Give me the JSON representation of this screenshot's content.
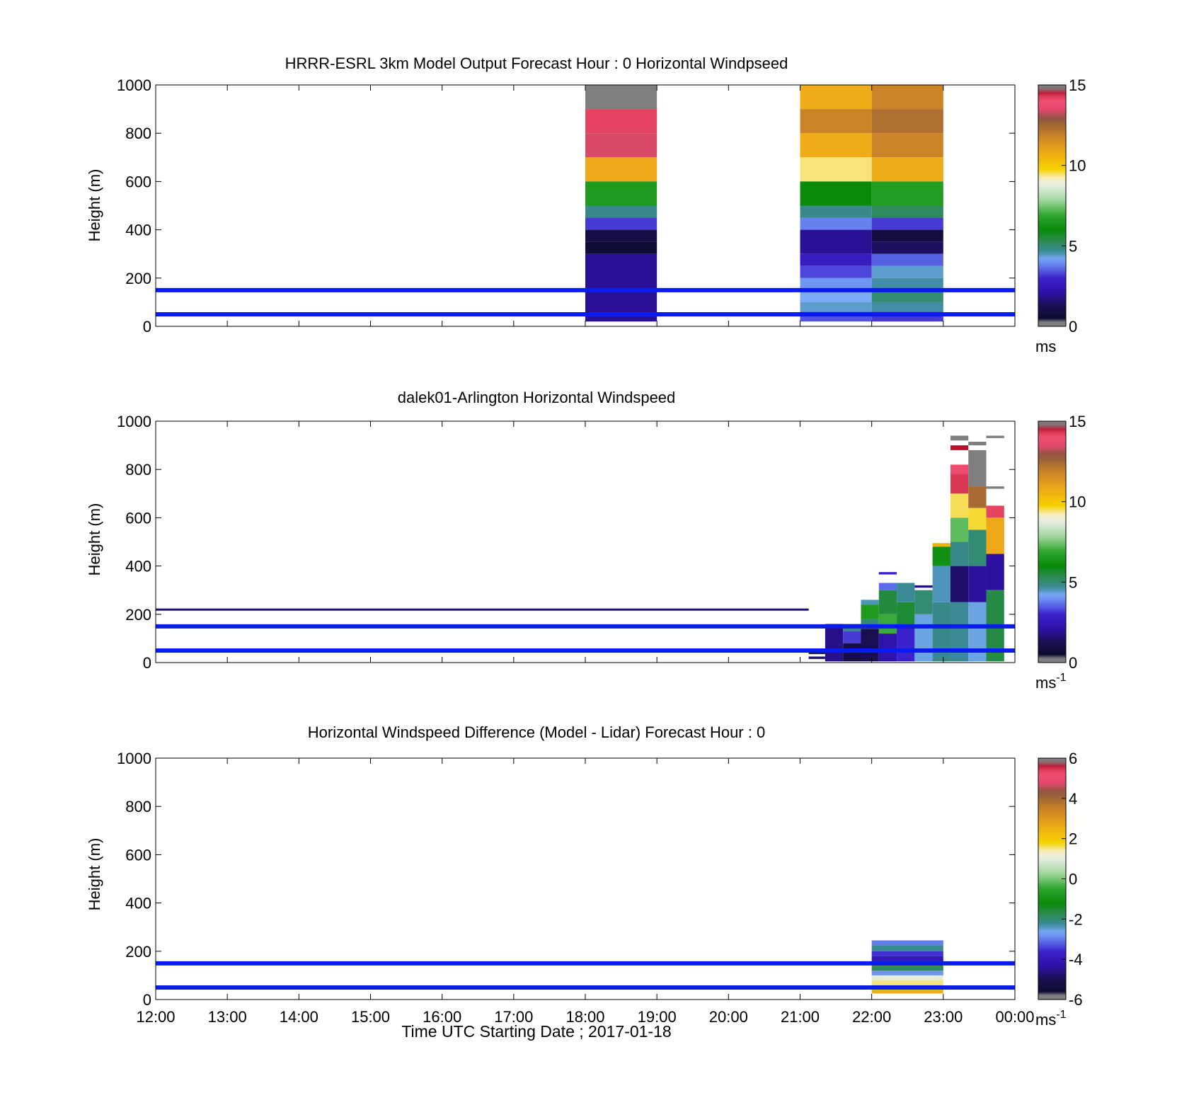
{
  "figure": {
    "xlabel": "Time UTC  Starting Date ; 2017-01-18",
    "x_tick_labels": [
      "12:00",
      "13:00",
      "14:00",
      "15:00",
      "16:00",
      "17:00",
      "18:00",
      "19:00",
      "20:00",
      "21:00",
      "22:00",
      "23:00",
      "00:00"
    ]
  },
  "chart_data": [
    {
      "type": "heatmap",
      "title": "HRRR-ESRL 3km Model Output   Forecast Hour : 0 Horizontal Windpseed",
      "ylabel": "Height (m)",
      "xlim": [
        12,
        24
      ],
      "ylim": [
        0,
        1000
      ],
      "y_ticks": [
        0,
        200,
        400,
        600,
        800,
        1000
      ],
      "y_tick_labels": [
        "0",
        "200",
        "400",
        "600",
        "800",
        "1000"
      ],
      "colorbar": {
        "min": 0,
        "max": 15,
        "ticks": [
          0,
          5,
          10,
          15
        ],
        "tick_labels": [
          "0",
          "5",
          "10",
          "15"
        ],
        "unit": "ms",
        "unit_exp": ""
      },
      "reference_lines_m": [
        50,
        150
      ],
      "reference_line_color": "#0a1bf0",
      "cells": [
        {
          "t0": 18,
          "t1": 19,
          "h0": 900,
          "h1": 1000,
          "v": 15.2
        },
        {
          "t0": 18,
          "t1": 19,
          "h0": 800,
          "h1": 900,
          "v": 14.2
        },
        {
          "t0": 18,
          "t1": 19,
          "h0": 700,
          "h1": 800,
          "v": 13.4
        },
        {
          "t0": 18,
          "t1": 19,
          "h0": 600,
          "h1": 700,
          "v": 10.8
        },
        {
          "t0": 18,
          "t1": 19,
          "h0": 500,
          "h1": 600,
          "v": 6.5
        },
        {
          "t0": 18,
          "t1": 19,
          "h0": 450,
          "h1": 500,
          "v": 4.8
        },
        {
          "t0": 18,
          "t1": 19,
          "h0": 400,
          "h1": 450,
          "v": 3.2
        },
        {
          "t0": 18,
          "t1": 19,
          "h0": 350,
          "h1": 400,
          "v": 1.0
        },
        {
          "t0": 18,
          "t1": 19,
          "h0": 300,
          "h1": 350,
          "v": 0.6
        },
        {
          "t0": 18,
          "t1": 19,
          "h0": 20,
          "h1": 300,
          "v": 1.9
        },
        {
          "t0": 21,
          "t1": 22,
          "h0": 900,
          "h1": 1000,
          "v": 10.7
        },
        {
          "t0": 21,
          "t1": 22,
          "h0": 800,
          "h1": 900,
          "v": 11.8
        },
        {
          "t0": 21,
          "t1": 22,
          "h0": 700,
          "h1": 800,
          "v": 10.7
        },
        {
          "t0": 21,
          "t1": 22,
          "h0": 600,
          "h1": 700,
          "v": 9.4
        },
        {
          "t0": 21,
          "t1": 22,
          "h0": 500,
          "h1": 600,
          "v": 6.0
        },
        {
          "t0": 21,
          "t1": 22,
          "h0": 450,
          "h1": 500,
          "v": 4.8
        },
        {
          "t0": 21,
          "t1": 22,
          "h0": 400,
          "h1": 450,
          "v": 3.8
        },
        {
          "t0": 21,
          "t1": 22,
          "h0": 300,
          "h1": 400,
          "v": 1.9
        },
        {
          "t0": 21,
          "t1": 22,
          "h0": 250,
          "h1": 300,
          "v": 2.7
        },
        {
          "t0": 21,
          "t1": 22,
          "h0": 200,
          "h1": 250,
          "v": 3.3
        },
        {
          "t0": 21,
          "t1": 22,
          "h0": 150,
          "h1": 200,
          "v": 4.0
        },
        {
          "t0": 21,
          "t1": 22,
          "h0": 100,
          "h1": 150,
          "v": 4.2
        },
        {
          "t0": 21,
          "t1": 22,
          "h0": 60,
          "h1": 100,
          "v": 4.4
        },
        {
          "t0": 21,
          "t1": 22,
          "h0": 20,
          "h1": 60,
          "v": 3.4
        },
        {
          "t0": 22,
          "t1": 23,
          "h0": 900,
          "h1": 1000,
          "v": 11.8
        },
        {
          "t0": 22,
          "t1": 23,
          "h0": 800,
          "h1": 900,
          "v": 12.3
        },
        {
          "t0": 22,
          "t1": 23,
          "h0": 700,
          "h1": 800,
          "v": 11.8
        },
        {
          "t0": 22,
          "t1": 23,
          "h0": 600,
          "h1": 700,
          "v": 10.7
        },
        {
          "t0": 22,
          "t1": 23,
          "h0": 500,
          "h1": 600,
          "v": 6.6
        },
        {
          "t0": 22,
          "t1": 23,
          "h0": 450,
          "h1": 500,
          "v": 5.2
        },
        {
          "t0": 22,
          "t1": 23,
          "h0": 400,
          "h1": 450,
          "v": 3.2
        },
        {
          "t0": 22,
          "t1": 23,
          "h0": 350,
          "h1": 400,
          "v": 0.9
        },
        {
          "t0": 22,
          "t1": 23,
          "h0": 300,
          "h1": 350,
          "v": 1.4
        },
        {
          "t0": 22,
          "t1": 23,
          "h0": 250,
          "h1": 300,
          "v": 3.5
        },
        {
          "t0": 22,
          "t1": 23,
          "h0": 200,
          "h1": 250,
          "v": 4.4
        },
        {
          "t0": 22,
          "t1": 23,
          "h0": 150,
          "h1": 200,
          "v": 4.6
        },
        {
          "t0": 22,
          "t1": 23,
          "h0": 100,
          "h1": 150,
          "v": 5.0
        },
        {
          "t0": 22,
          "t1": 23,
          "h0": 60,
          "h1": 100,
          "v": 4.6
        },
        {
          "t0": 22,
          "t1": 23,
          "h0": 20,
          "h1": 60,
          "v": 3.2
        }
      ]
    },
    {
      "type": "heatmap",
      "title": "dalek01-Arlington  Horizontal Windspeed",
      "ylabel": "Height (m)",
      "xlim": [
        12,
        24
      ],
      "ylim": [
        0,
        1000
      ],
      "y_ticks": [
        0,
        200,
        400,
        600,
        800,
        1000
      ],
      "y_tick_labels": [
        "0",
        "200",
        "400",
        "600",
        "800",
        "1000"
      ],
      "colorbar": {
        "min": 0,
        "max": 15,
        "ticks": [
          0,
          5,
          10,
          15
        ],
        "tick_labels": [
          "0",
          "5",
          "10",
          "15"
        ],
        "unit": "ms",
        "unit_exp": "-1"
      },
      "reference_lines_m": [
        50,
        150
      ],
      "reference_line_color": "#0a1bf0",
      "cells": [
        {
          "t0": 12,
          "t1": 21.12,
          "h0": 215,
          "h1": 224,
          "v": 1.6
        },
        {
          "t0": 21.12,
          "t1": 21.35,
          "h0": 15,
          "h1": 25,
          "v": 1.5
        },
        {
          "t0": 21.12,
          "t1": 21.35,
          "h0": 35,
          "h1": 42,
          "v": 1.5
        },
        {
          "t0": 21.35,
          "t1": 21.6,
          "h0": 5,
          "h1": 160,
          "v": 1.8
        },
        {
          "t0": 21.6,
          "t1": 21.85,
          "h0": 130,
          "h1": 160,
          "v": 4.8
        },
        {
          "t0": 21.6,
          "t1": 21.85,
          "h0": 80,
          "h1": 130,
          "v": 3.2
        },
        {
          "t0": 21.6,
          "t1": 21.85,
          "h0": 5,
          "h1": 80,
          "v": 1.0
        },
        {
          "t0": 21.85,
          "t1": 22.1,
          "h0": 240,
          "h1": 260,
          "v": 4.5
        },
        {
          "t0": 21.85,
          "t1": 22.1,
          "h0": 180,
          "h1": 240,
          "v": 6.5
        },
        {
          "t0": 21.85,
          "t1": 22.1,
          "h0": 140,
          "h1": 180,
          "v": 5.0
        },
        {
          "t0": 21.85,
          "t1": 22.1,
          "h0": 5,
          "h1": 140,
          "v": 1.2
        },
        {
          "t0": 22.1,
          "t1": 22.35,
          "h0": 300,
          "h1": 330,
          "v": 3.6
        },
        {
          "t0": 22.1,
          "t1": 22.35,
          "h0": 200,
          "h1": 300,
          "v": 5.5
        },
        {
          "t0": 22.1,
          "t1": 22.35,
          "h0": 120,
          "h1": 200,
          "v": 7.0
        },
        {
          "t0": 22.1,
          "t1": 22.35,
          "h0": 5,
          "h1": 120,
          "v": 2.2
        },
        {
          "t0": 22.1,
          "t1": 22.35,
          "h0": 365,
          "h1": 375,
          "v": 3.0
        },
        {
          "t0": 22.35,
          "t1": 22.6,
          "h0": 250,
          "h1": 330,
          "v": 4.7
        },
        {
          "t0": 22.35,
          "t1": 22.6,
          "h0": 150,
          "h1": 250,
          "v": 5.6
        },
        {
          "t0": 22.35,
          "t1": 22.6,
          "h0": 5,
          "h1": 150,
          "v": 3.0
        },
        {
          "t0": 22.6,
          "t1": 22.85,
          "h0": 310,
          "h1": 320,
          "v": 1.8
        },
        {
          "t0": 22.6,
          "t1": 22.85,
          "h0": 200,
          "h1": 300,
          "v": 5.0
        },
        {
          "t0": 22.6,
          "t1": 22.85,
          "h0": 5,
          "h1": 200,
          "v": 4.3
        },
        {
          "t0": 22.85,
          "t1": 23.1,
          "h0": 480,
          "h1": 495,
          "v": 10.5
        },
        {
          "t0": 22.85,
          "t1": 23.1,
          "h0": 400,
          "h1": 480,
          "v": 6.2
        },
        {
          "t0": 22.85,
          "t1": 23.1,
          "h0": 250,
          "h1": 400,
          "v": 4.5
        },
        {
          "t0": 22.85,
          "t1": 23.1,
          "h0": 5,
          "h1": 250,
          "v": 4.8
        },
        {
          "t0": 23.1,
          "t1": 23.35,
          "h0": 920,
          "h1": 940,
          "v": 15.5
        },
        {
          "t0": 23.1,
          "t1": 23.35,
          "h0": 880,
          "h1": 900,
          "v": 14.6
        },
        {
          "t0": 23.1,
          "t1": 23.35,
          "h0": 780,
          "h1": 820,
          "v": 13.8
        },
        {
          "t0": 23.1,
          "t1": 23.35,
          "h0": 700,
          "h1": 780,
          "v": 14.3
        },
        {
          "t0": 23.1,
          "t1": 23.35,
          "h0": 600,
          "h1": 700,
          "v": 9.5
        },
        {
          "t0": 23.1,
          "t1": 23.35,
          "h0": 500,
          "h1": 600,
          "v": 7.3
        },
        {
          "t0": 23.1,
          "t1": 23.35,
          "h0": 400,
          "h1": 500,
          "v": 4.8
        },
        {
          "t0": 23.1,
          "t1": 23.35,
          "h0": 250,
          "h1": 400,
          "v": 1.5
        },
        {
          "t0": 23.1,
          "t1": 23.35,
          "h0": 5,
          "h1": 250,
          "v": 4.7
        },
        {
          "t0": 23.35,
          "t1": 23.6,
          "h0": 900,
          "h1": 915,
          "v": 15.5
        },
        {
          "t0": 23.35,
          "t1": 23.6,
          "h0": 730,
          "h1": 880,
          "v": 15.5
        },
        {
          "t0": 23.35,
          "t1": 23.6,
          "h0": 640,
          "h1": 730,
          "v": 12.4
        },
        {
          "t0": 23.35,
          "t1": 23.6,
          "h0": 550,
          "h1": 640,
          "v": 9.6
        },
        {
          "t0": 23.35,
          "t1": 23.6,
          "h0": 400,
          "h1": 550,
          "v": 5.0
        },
        {
          "t0": 23.35,
          "t1": 23.6,
          "h0": 250,
          "h1": 400,
          "v": 2.0
        },
        {
          "t0": 23.35,
          "t1": 23.6,
          "h0": 5,
          "h1": 250,
          "v": 4.3
        },
        {
          "t0": 23.6,
          "t1": 23.85,
          "h0": 930,
          "h1": 940,
          "v": 15.5
        },
        {
          "t0": 23.6,
          "t1": 23.85,
          "h0": 720,
          "h1": 730,
          "v": 15.5
        },
        {
          "t0": 23.6,
          "t1": 23.85,
          "h0": 600,
          "h1": 650,
          "v": 14.2
        },
        {
          "t0": 23.6,
          "t1": 23.85,
          "h0": 450,
          "h1": 600,
          "v": 10.8
        },
        {
          "t0": 23.6,
          "t1": 23.85,
          "h0": 300,
          "h1": 450,
          "v": 2.0
        },
        {
          "t0": 23.6,
          "t1": 23.85,
          "h0": 5,
          "h1": 300,
          "v": 5.4
        }
      ]
    },
    {
      "type": "heatmap",
      "title": "Horizontal Windspeed Difference (Model - Lidar) Forecast Hour : 0",
      "ylabel": "Height (m)",
      "xlim": [
        12,
        24
      ],
      "ylim": [
        0,
        1000
      ],
      "y_ticks": [
        0,
        200,
        400,
        600,
        800,
        1000
      ],
      "y_tick_labels": [
        "0",
        "200",
        "400",
        "600",
        "800",
        "1000"
      ],
      "colorbar": {
        "min": -6,
        "max": 6,
        "ticks": [
          -6,
          -4,
          -2,
          0,
          2,
          4,
          6
        ],
        "tick_labels": [
          "-6",
          "-4",
          "-2",
          "0",
          "2",
          "4",
          "6"
        ],
        "unit": "ms",
        "unit_exp": "-1"
      },
      "reference_lines_m": [
        50,
        150
      ],
      "reference_line_color": "#0a1bf0",
      "cells": [
        {
          "t0": 22,
          "t1": 23,
          "h0": 225,
          "h1": 245,
          "v": -3.0
        },
        {
          "t0": 22,
          "t1": 23,
          "h0": 200,
          "h1": 225,
          "v": -2.2
        },
        {
          "t0": 22,
          "t1": 23,
          "h0": 180,
          "h1": 200,
          "v": -3.5
        },
        {
          "t0": 22,
          "t1": 23,
          "h0": 160,
          "h1": 180,
          "v": -4.0
        },
        {
          "t0": 22,
          "t1": 23,
          "h0": 140,
          "h1": 160,
          "v": -4.2
        },
        {
          "t0": 22,
          "t1": 23,
          "h0": 120,
          "h1": 140,
          "v": -1.8
        },
        {
          "t0": 22,
          "t1": 23,
          "h0": 100,
          "h1": 120,
          "v": -2.8
        },
        {
          "t0": 22,
          "t1": 23,
          "h0": 80,
          "h1": 100,
          "v": 1.0
        },
        {
          "t0": 22,
          "t1": 23,
          "h0": 60,
          "h1": 80,
          "v": 1.5
        },
        {
          "t0": 22,
          "t1": 23,
          "h0": 40,
          "h1": 60,
          "v": 2.0
        },
        {
          "t0": 22,
          "t1": 23,
          "h0": 25,
          "h1": 40,
          "v": 2.5
        }
      ]
    }
  ]
}
